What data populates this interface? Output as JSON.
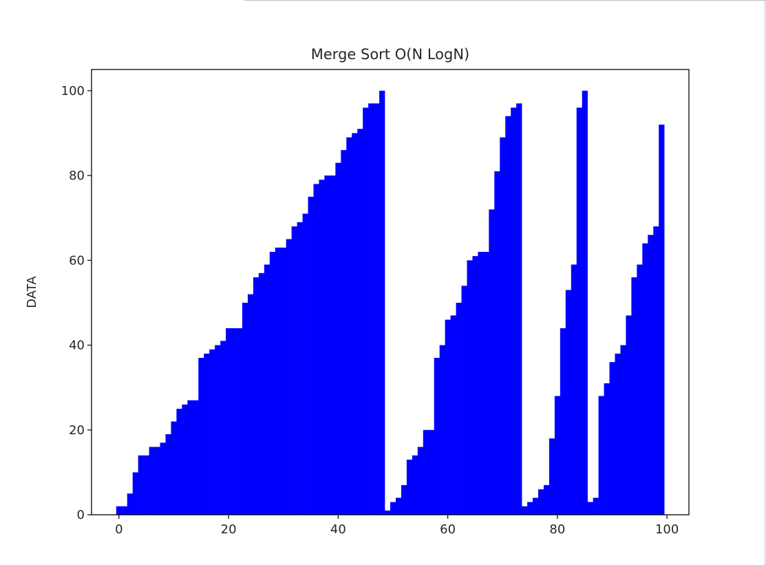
{
  "chart_data": {
    "type": "bar",
    "title": "Merge Sort O(N LogN)",
    "xlabel": "",
    "ylabel": "DATA",
    "xlim": [
      -5,
      104
    ],
    "ylim": [
      0,
      105
    ],
    "xticks": [
      0,
      20,
      40,
      60,
      80,
      100
    ],
    "yticks": [
      0,
      20,
      40,
      60,
      80,
      100
    ],
    "xtick_labels": [
      "0",
      "20",
      "40",
      "60",
      "80",
      "100"
    ],
    "ytick_labels": [
      "0",
      "20",
      "40",
      "60",
      "80",
      "100"
    ],
    "bar_color": "#0000ff",
    "grid": false,
    "x": [
      0,
      1,
      2,
      3,
      4,
      5,
      6,
      7,
      8,
      9,
      10,
      11,
      12,
      13,
      14,
      15,
      16,
      17,
      18,
      19,
      20,
      21,
      22,
      23,
      24,
      25,
      26,
      27,
      28,
      29,
      30,
      31,
      32,
      33,
      34,
      35,
      36,
      37,
      38,
      39,
      40,
      41,
      42,
      43,
      44,
      45,
      46,
      47,
      48,
      49,
      50,
      51,
      52,
      53,
      54,
      55,
      56,
      57,
      58,
      59,
      60,
      61,
      62,
      63,
      64,
      65,
      66,
      67,
      68,
      69,
      70,
      71,
      72,
      73,
      74,
      75,
      76,
      77,
      78,
      79,
      80,
      81,
      82,
      83,
      84,
      85,
      86,
      87,
      88,
      89,
      90,
      91,
      92,
      93,
      94,
      95,
      96,
      97,
      98,
      99
    ],
    "values": [
      2,
      2,
      5,
      10,
      14,
      14,
      16,
      16,
      17,
      19,
      22,
      25,
      26,
      27,
      27,
      37,
      38,
      39,
      40,
      41,
      44,
      44,
      44,
      50,
      52,
      56,
      57,
      59,
      62,
      63,
      63,
      65,
      68,
      69,
      71,
      75,
      78,
      79,
      80,
      80,
      83,
      86,
      89,
      90,
      91,
      96,
      97,
      97,
      100,
      1,
      3,
      4,
      7,
      13,
      14,
      16,
      20,
      20,
      37,
      40,
      46,
      47,
      50,
      54,
      60,
      61,
      62,
      62,
      72,
      81,
      89,
      94,
      96,
      97,
      2,
      3,
      4,
      6,
      7,
      18,
      28,
      44,
      53,
      59,
      96,
      100,
      3,
      4,
      28,
      31,
      36,
      38,
      40,
      47,
      56,
      59,
      64,
      66,
      68,
      92
    ]
  }
}
